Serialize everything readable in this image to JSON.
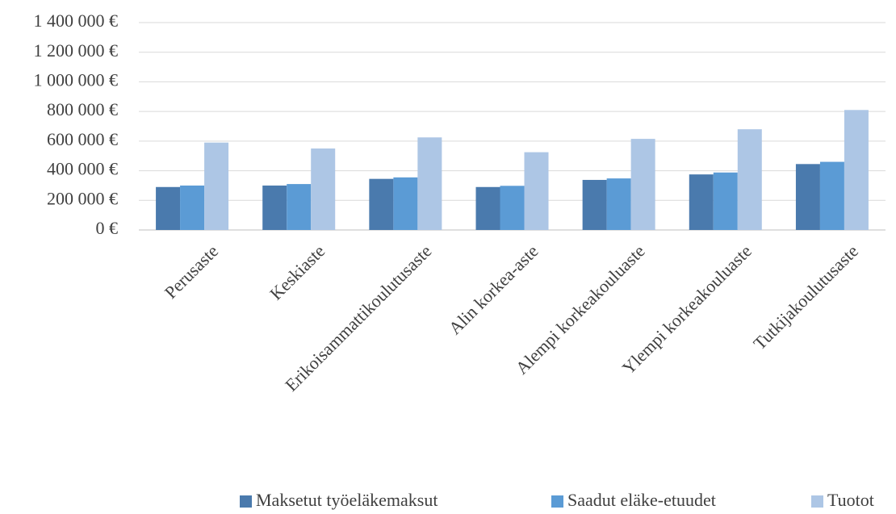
{
  "chart_data": {
    "type": "bar",
    "categories": [
      "Perusaste",
      "Keskiaste",
      "Erikoisammattikoulutusaste",
      "Alin korkea-aste",
      "Alempi korkeakouluaste",
      "Ylempi korkeakouluaste",
      "Tutkijakoulutusaste"
    ],
    "series": [
      {
        "name": "Maksetut työeläkemaksut",
        "color": "#4a7aad",
        "values": [
          290000,
          300000,
          345000,
          290000,
          338000,
          375000,
          445000
        ]
      },
      {
        "name": "Saadut eläke-etuudet",
        "color": "#5b9bd5",
        "values": [
          300000,
          310000,
          355000,
          298000,
          348000,
          388000,
          460000
        ]
      },
      {
        "name": "Tuotot",
        "color": "#adc6e5",
        "values": [
          590000,
          550000,
          625000,
          525000,
          615000,
          680000,
          810000
        ]
      }
    ],
    "ylim": [
      0,
      1400000
    ],
    "yticks": [
      {
        "value": 0,
        "label": "0 €"
      },
      {
        "value": 200000,
        "label": "200 000 €"
      },
      {
        "value": 400000,
        "label": "400 000 €"
      },
      {
        "value": 600000,
        "label": "600 000 €"
      },
      {
        "value": 800000,
        "label": "800 000 €"
      },
      {
        "value": 1000000,
        "label": "1 000 000 €"
      },
      {
        "value": 1200000,
        "label": "1 200 000 €"
      },
      {
        "value": 1400000,
        "label": "1 400 000 €"
      }
    ],
    "grid": true,
    "legend": "bottom"
  }
}
